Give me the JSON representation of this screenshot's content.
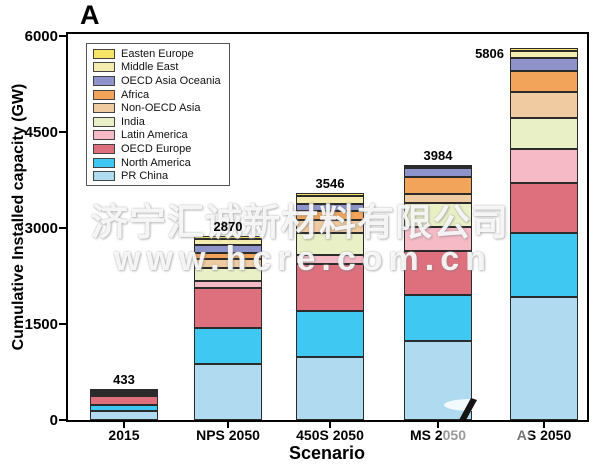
{
  "panel_label": "A",
  "watermark": {
    "line1": "济宁汇诚新材料有限公司",
    "line2": "www.hcre.com.cn"
  },
  "chart_data": {
    "type": "bar",
    "stacked": true,
    "title": "",
    "xlabel": "Scenario",
    "ylabel": "Cumulative Installed capacity (GW)",
    "ylim": [
      0,
      6000
    ],
    "yticks": [
      0,
      1500,
      3000,
      4500,
      6000
    ],
    "grid": false,
    "legend_position": "top-left",
    "categories": [
      "2015",
      "NPS 2050",
      "450S 2050",
      "MS 2050",
      "AS 2050"
    ],
    "totals": [
      433,
      2870,
      3546,
      3984,
      5806
    ],
    "series": [
      {
        "name": "PR China",
        "color": "#AFDAEF",
        "values": [
          145,
          870,
          990,
          1230,
          1920
        ]
      },
      {
        "name": "North America",
        "color": "#3FC8F1",
        "values": [
          89,
          560,
          710,
          720,
          1000
        ]
      },
      {
        "name": "OECD Europe",
        "color": "#DE707E",
        "values": [
          148,
          625,
          730,
          690,
          780
        ]
      },
      {
        "name": "Latin America",
        "color": "#F5BAC5",
        "values": [
          15,
          110,
          155,
          380,
          540
        ]
      },
      {
        "name": "India",
        "color": "#EAF0C6",
        "values": [
          22,
          210,
          330,
          365,
          485
        ]
      },
      {
        "name": "Non-OECD Asia",
        "color": "#F0CBA1",
        "values": [
          4,
          145,
          205,
          140,
          400
        ]
      },
      {
        "name": "Africa",
        "color": "#F2A45B",
        "values": [
          3,
          85,
          145,
          275,
          325
        ]
      },
      {
        "name": "OECD Asia Oceania",
        "color": "#8E93CA",
        "values": [
          4,
          125,
          105,
          140,
          205
        ]
      },
      {
        "name": "Middle East",
        "color": "#F5EDAF",
        "values": [
          2,
          105,
          130,
          30,
          110
        ]
      },
      {
        "name": "Easten Europe",
        "color": "#F8E464",
        "values": [
          1,
          35,
          46,
          14,
          41
        ]
      }
    ]
  }
}
